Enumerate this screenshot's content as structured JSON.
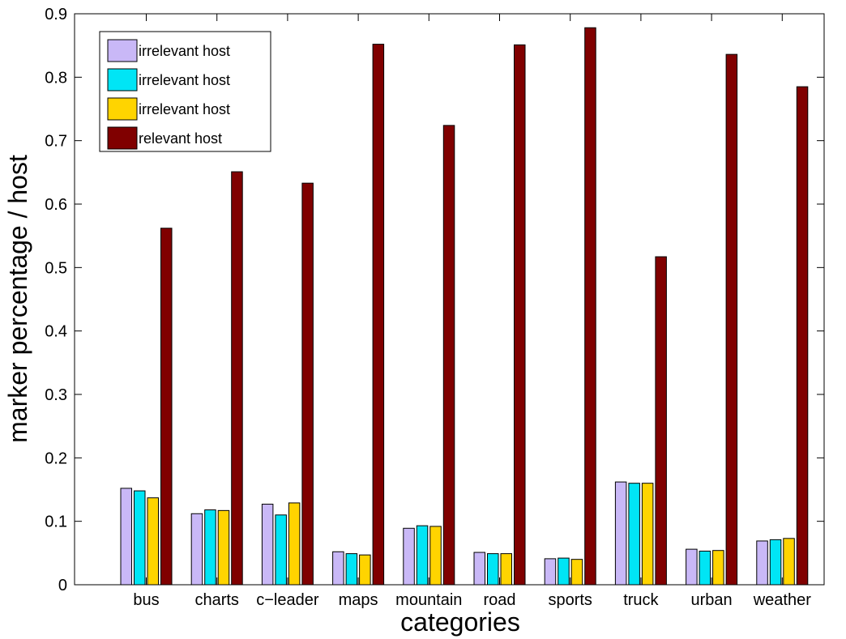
{
  "chart_data": {
    "type": "bar",
    "xlabel": "categories",
    "ylabel": "marker percentage / host",
    "ylim": [
      0,
      0.9
    ],
    "yticks": [
      "0",
      "0.1",
      "0.2",
      "0.3",
      "0.4",
      "0.5",
      "0.6",
      "0.7",
      "0.8",
      "0.9"
    ],
    "categories": [
      "bus",
      "charts",
      "c−leader",
      "maps",
      "mountain",
      "road",
      "sports",
      "truck",
      "urban",
      "weather"
    ],
    "legend_position": "top-left",
    "series": [
      {
        "name": "irrelevant host",
        "color": "#c9b8f7",
        "values": [
          0.152,
          0.112,
          0.127,
          0.052,
          0.089,
          0.051,
          0.041,
          0.162,
          0.056,
          0.069
        ]
      },
      {
        "name": "irrelevant host",
        "color": "#00e5f5",
        "values": [
          0.148,
          0.118,
          0.11,
          0.049,
          0.093,
          0.049,
          0.042,
          0.16,
          0.053,
          0.071
        ]
      },
      {
        "name": "irrelevant host",
        "color": "#ffd400",
        "values": [
          0.137,
          0.117,
          0.129,
          0.047,
          0.092,
          0.049,
          0.04,
          0.16,
          0.054,
          0.073
        ]
      },
      {
        "name": "relevant host",
        "color": "#800000",
        "values": [
          0.562,
          0.651,
          0.633,
          0.852,
          0.724,
          0.851,
          0.878,
          0.517,
          0.836,
          0.785
        ]
      }
    ]
  }
}
